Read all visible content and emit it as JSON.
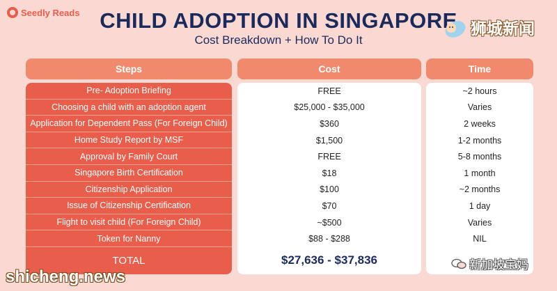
{
  "brand": {
    "logo_text": "Seedly Reads"
  },
  "header": {
    "title": "CHILD ADOPTION IN SINGAPORE",
    "subtitle": "Cost Breakdown + How To Do It"
  },
  "watermarks": {
    "top_right": "狮城新闻",
    "bottom_left": "shicheng.news",
    "bottom_right": "新加坡宝妈"
  },
  "table": {
    "columns": [
      "Steps",
      "Cost",
      "Time"
    ],
    "rows": [
      {
        "step": "Pre- Adoption Briefing",
        "cost": "FREE",
        "time": "~2 hours"
      },
      {
        "step": "Choosing a child with an adoption agent",
        "cost": "$25,000 - $35,000",
        "time": "Varies"
      },
      {
        "step": "Application for Dependent Pass (For Foreign Child)",
        "cost": "$360",
        "time": "2 weeks"
      },
      {
        "step": "Home Study Report by MSF",
        "cost": "$1,500",
        "time": "1-2 months"
      },
      {
        "step": "Approval by Family Court",
        "cost": "FREE",
        "time": "5-8 months"
      },
      {
        "step": "Singapore Birth Certification",
        "cost": "$18",
        "time": "1 month"
      },
      {
        "step": "Citizenship Application",
        "cost": "$100",
        "time": "~2 months"
      },
      {
        "step": "Issue of Citizenship Certification",
        "cost": "$70",
        "time": "1 day"
      },
      {
        "step": "Flight to visit child (For Foreign Child)",
        "cost": "~$500",
        "time": "Varies"
      },
      {
        "step": "Token for Nanny",
        "cost": "$88 - $288",
        "time": "NIL"
      }
    ],
    "total_label": "TOTAL",
    "total_cost": "$27,636 - $37,836"
  },
  "colors": {
    "background": "#fbd9d3",
    "header_fill": "#f18a6d",
    "steps_fill": "#e95d4b",
    "title_navy": "#1b2a5c"
  }
}
